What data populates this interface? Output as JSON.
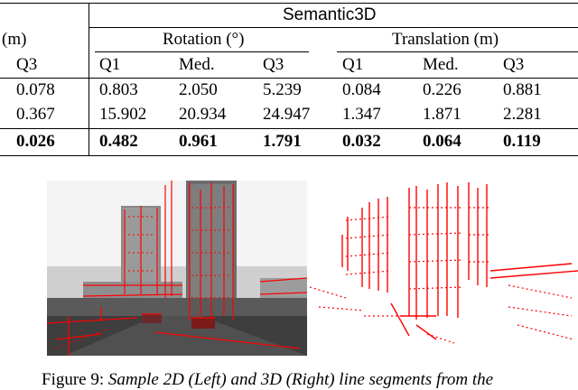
{
  "table": {
    "dataset_header": "Semantic3D",
    "left_group_header": "(m)",
    "rotation_header": "Rotation (°)",
    "translation_header": "Translation (m)",
    "columns": [
      "Q3",
      "Q1",
      "Med.",
      "Q3",
      "Q1",
      "Med.",
      "Q3"
    ],
    "rows": [
      [
        "0.078",
        "0.803",
        "2.050",
        "5.239",
        "0.084",
        "0.226",
        "0.881"
      ],
      [
        "0.367",
        "15.902",
        "20.934",
        "24.947",
        "1.347",
        "1.871",
        "2.281"
      ],
      [
        "0.026",
        "0.482",
        "0.961",
        "1.791",
        "0.032",
        "0.064",
        "0.119"
      ]
    ],
    "bold_row_index": 2
  },
  "caption": {
    "label": "Figure 9: ",
    "text": "Sample 2D (Left) and 3D (Right) line segments from the"
  },
  "colors": {
    "line_segments": "#ff0000"
  }
}
